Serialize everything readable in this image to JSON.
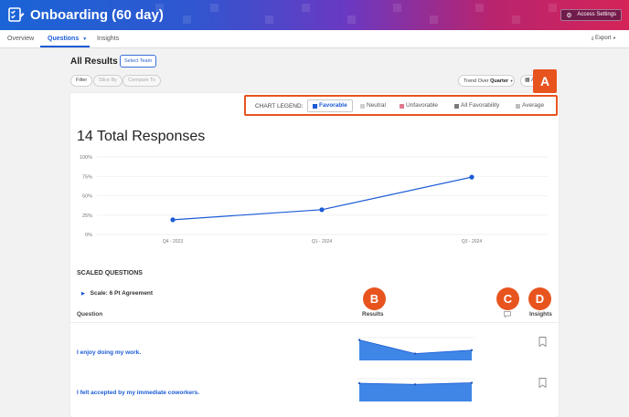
{
  "app": {
    "title": "Onboarding (60 day)",
    "access_settings": "Access Settings"
  },
  "nav": {
    "tabs": [
      "Overview",
      "Questions",
      "Insights"
    ],
    "export": "Export"
  },
  "results": {
    "heading": "All Results",
    "select_team": "Select Team"
  },
  "filters": {
    "filter": "Filter",
    "slice_by": "Slice By",
    "compare_to": "Compare To",
    "trend_prefix": "Trend Over",
    "trend_value": "Quarter",
    "date_abbrev": "A"
  },
  "legend": {
    "label": "CHART LEGEND:",
    "items": [
      {
        "label": "Favorable",
        "color": "#1b5bd6",
        "active": true
      },
      {
        "label": "Neutral",
        "color": "#cfcfcf",
        "active": false
      },
      {
        "label": "Unfavorable",
        "color": "#e07a8f",
        "active": false
      },
      {
        "label": "All Favorability",
        "color": "#7a7a7a",
        "active": false
      },
      {
        "label": "Average",
        "color": "#bdbdbd",
        "active": false
      }
    ]
  },
  "badges": {
    "a": "A",
    "b": "B",
    "c": "C",
    "d": "D"
  },
  "summary": {
    "total_responses": "14 Total Responses"
  },
  "chart_data": {
    "type": "line",
    "categories": [
      "Q4 - 2023",
      "Q1 - 2024",
      "Q3 - 2024"
    ],
    "series": [
      {
        "values": [
          19,
          32,
          74
        ]
      }
    ],
    "ylim": [
      0,
      100
    ],
    "yticks": [
      "100%",
      "75%",
      "50%",
      "25%",
      "0%"
    ],
    "color": "#1b5bd6"
  },
  "scaled": {
    "section_title": "SCALED QUESTIONS",
    "scale_label": "Scale: 6 Pt Agreement",
    "col_question": "Question",
    "col_results": "Results",
    "col_insights": "Insights",
    "questions": [
      {
        "text": "I enjoy doing my work.",
        "trend": [
          90,
          30,
          45
        ]
      },
      {
        "text": "I felt accepted by my immediate coworkers.",
        "trend": [
          80,
          75,
          82
        ]
      }
    ]
  }
}
